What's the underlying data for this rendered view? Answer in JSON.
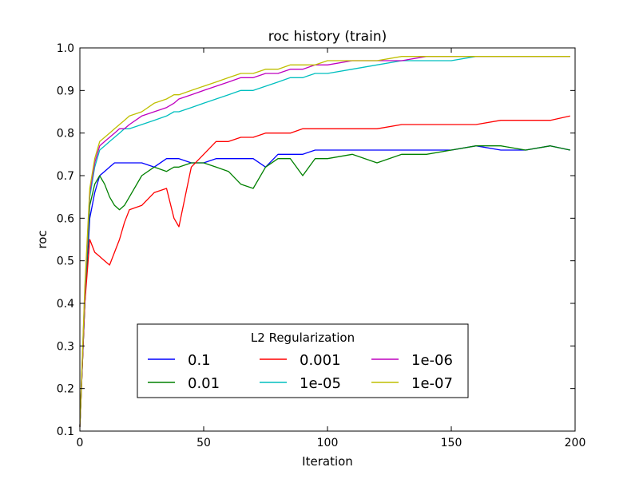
{
  "chart_data": {
    "type": "line",
    "title": "roc history (train)",
    "xlabel": "Iteration",
    "ylabel": "roc",
    "xlim": [
      0,
      200
    ],
    "ylim": [
      0.1,
      1.0
    ],
    "x_ticks": [
      "0",
      "50",
      "100",
      "150",
      "200"
    ],
    "y_ticks": [
      "0.1",
      "0.2",
      "0.3",
      "0.4",
      "0.5",
      "0.6",
      "0.7",
      "0.8",
      "0.9",
      "1.0"
    ],
    "grid": false,
    "legend": {
      "title": "L2 Regularization",
      "placement": "lower-center",
      "columns": 3
    },
    "x": [
      0,
      2,
      4,
      6,
      8,
      10,
      12,
      14,
      16,
      18,
      20,
      25,
      30,
      35,
      38,
      40,
      45,
      50,
      55,
      60,
      65,
      70,
      75,
      80,
      85,
      90,
      95,
      100,
      110,
      120,
      130,
      140,
      150,
      160,
      170,
      180,
      190,
      198
    ],
    "series": [
      {
        "name": "0.1",
        "color": "#0000ff",
        "values": [
          0.11,
          0.4,
          0.6,
          0.66,
          0.7,
          0.71,
          0.72,
          0.73,
          0.73,
          0.73,
          0.73,
          0.73,
          0.72,
          0.74,
          0.74,
          0.74,
          0.73,
          0.73,
          0.74,
          0.74,
          0.74,
          0.74,
          0.72,
          0.75,
          0.75,
          0.75,
          0.76,
          0.76,
          0.76,
          0.76,
          0.76,
          0.76,
          0.76,
          0.77,
          0.76,
          0.76,
          0.77,
          0.76
        ]
      },
      {
        "name": "0.01",
        "color": "#008000",
        "values": [
          0.11,
          0.4,
          0.63,
          0.68,
          0.7,
          0.68,
          0.65,
          0.63,
          0.62,
          0.63,
          0.65,
          0.7,
          0.72,
          0.71,
          0.72,
          0.72,
          0.73,
          0.73,
          0.72,
          0.71,
          0.68,
          0.67,
          0.72,
          0.74,
          0.74,
          0.7,
          0.74,
          0.74,
          0.75,
          0.73,
          0.75,
          0.75,
          0.76,
          0.77,
          0.77,
          0.76,
          0.77,
          0.76
        ]
      },
      {
        "name": "0.001",
        "color": "#ff0000",
        "values": [
          0.11,
          0.4,
          0.55,
          0.52,
          0.51,
          0.5,
          0.49,
          0.52,
          0.55,
          0.59,
          0.62,
          0.63,
          0.66,
          0.67,
          0.6,
          0.58,
          0.72,
          0.75,
          0.78,
          0.78,
          0.79,
          0.79,
          0.8,
          0.8,
          0.8,
          0.81,
          0.81,
          0.81,
          0.81,
          0.81,
          0.82,
          0.82,
          0.82,
          0.82,
          0.83,
          0.83,
          0.83,
          0.84
        ]
      },
      {
        "name": "1e-05",
        "color": "#00bfbf",
        "values": [
          0.11,
          0.42,
          0.65,
          0.72,
          0.76,
          0.77,
          0.78,
          0.79,
          0.8,
          0.81,
          0.81,
          0.82,
          0.83,
          0.84,
          0.85,
          0.85,
          0.86,
          0.87,
          0.88,
          0.89,
          0.9,
          0.9,
          0.91,
          0.92,
          0.93,
          0.93,
          0.94,
          0.94,
          0.95,
          0.96,
          0.97,
          0.97,
          0.97,
          0.98,
          0.98,
          0.98,
          0.98,
          0.98
        ]
      },
      {
        "name": "1e-06",
        "color": "#bf00bf",
        "values": [
          0.11,
          0.43,
          0.66,
          0.73,
          0.77,
          0.78,
          0.79,
          0.8,
          0.81,
          0.81,
          0.82,
          0.84,
          0.85,
          0.86,
          0.87,
          0.88,
          0.89,
          0.9,
          0.91,
          0.92,
          0.93,
          0.93,
          0.94,
          0.94,
          0.95,
          0.95,
          0.96,
          0.96,
          0.97,
          0.97,
          0.97,
          0.98,
          0.98,
          0.98,
          0.98,
          0.98,
          0.98,
          0.98
        ]
      },
      {
        "name": "1e-07",
        "color": "#bfbf00",
        "values": [
          0.11,
          0.44,
          0.67,
          0.74,
          0.78,
          0.79,
          0.8,
          0.81,
          0.82,
          0.83,
          0.84,
          0.85,
          0.87,
          0.88,
          0.89,
          0.89,
          0.9,
          0.91,
          0.92,
          0.93,
          0.94,
          0.94,
          0.95,
          0.95,
          0.96,
          0.96,
          0.96,
          0.97,
          0.97,
          0.97,
          0.98,
          0.98,
          0.98,
          0.98,
          0.98,
          0.98,
          0.98,
          0.98
        ]
      }
    ]
  }
}
